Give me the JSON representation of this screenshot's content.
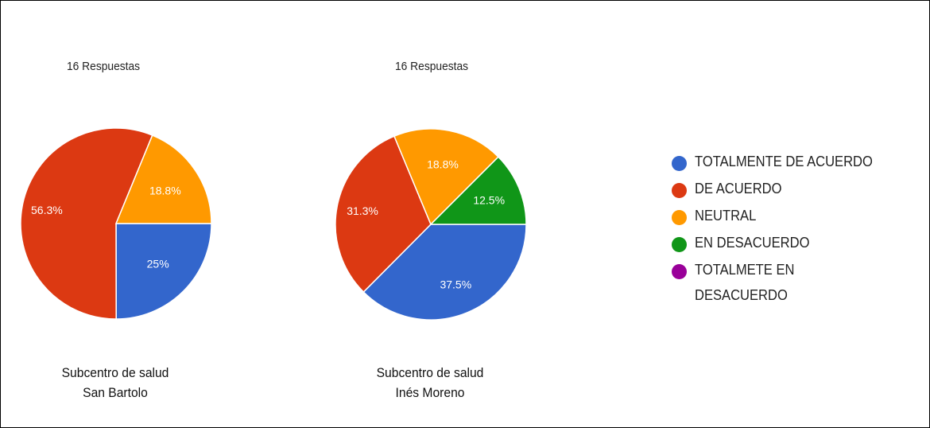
{
  "chart_data": [
    {
      "type": "pie",
      "title": "16 Respuestas",
      "caption": [
        "Subcentro de salud",
        "San Bartolo"
      ],
      "slices": [
        {
          "name": "TOTALMENTE DE ACUERDO",
          "value": 25,
          "label": "25%"
        },
        {
          "name": "DE ACUERDO",
          "value": 56.3,
          "label": "56.3%"
        },
        {
          "name": "NEUTRAL",
          "value": 18.8,
          "label": "18.8%"
        }
      ]
    },
    {
      "type": "pie",
      "title": "16 Respuestas",
      "caption": [
        "Subcentro de salud",
        "Inés Moreno"
      ],
      "slices": [
        {
          "name": "TOTALMENTE DE ACUERDO",
          "value": 37.5,
          "label": "37.5%"
        },
        {
          "name": "DE ACUERDO",
          "value": 31.3,
          "label": "31.3%"
        },
        {
          "name": "NEUTRAL",
          "value": 18.8,
          "label": "18.8%"
        },
        {
          "name": "EN DESACUERDO",
          "value": 12.5,
          "label": "12.5%"
        }
      ]
    }
  ],
  "legend": {
    "placement": "right",
    "items": [
      {
        "label": "TOTALMENTE DE ACUERDO",
        "color": "#3366cc"
      },
      {
        "label": "DE ACUERDO",
        "color": "#dc3912"
      },
      {
        "label": "NEUTRAL",
        "color": "#ff9900"
      },
      {
        "label": "EN DESACUERDO",
        "color": "#109618"
      },
      {
        "label": "TOTALMETE EN DESACUERDO",
        "color": "#990099"
      }
    ]
  }
}
